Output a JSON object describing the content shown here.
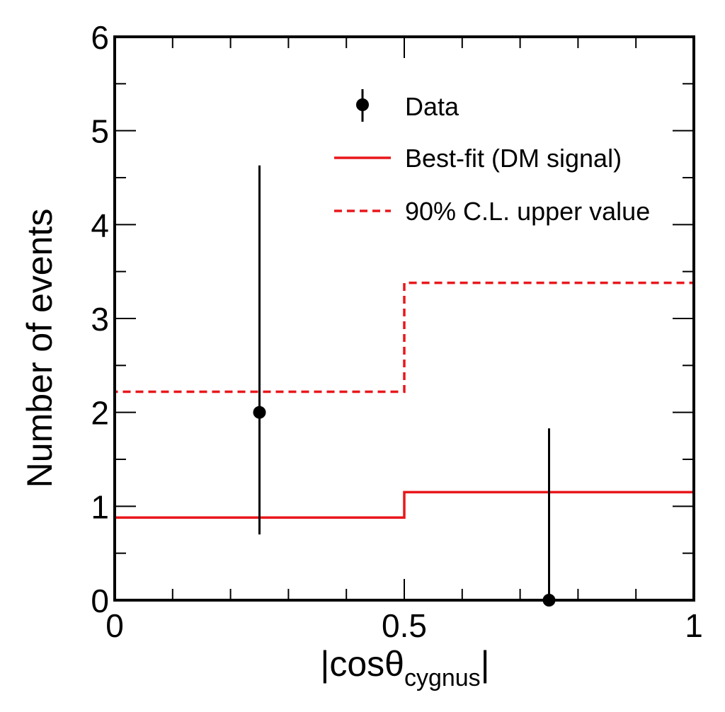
{
  "chart_data": {
    "type": "line",
    "x_range": [
      0,
      1
    ],
    "y_range": [
      0,
      6
    ],
    "x_ticks": [
      "0",
      "0.5",
      "1"
    ],
    "y_ticks": [
      "0",
      "1",
      "2",
      "3",
      "4",
      "5",
      "6"
    ],
    "x_label": {
      "pre": "|cosθ",
      "sub": "cygnus",
      "post": "|"
    },
    "y_label": "Number of events",
    "grid": false,
    "legend_position": "top-right",
    "data": {
      "name": "Data",
      "points": [
        {
          "x": 0.25,
          "y": 2,
          "err_low": 1.3,
          "err_high": 2.63
        },
        {
          "x": 0.75,
          "y": 0,
          "err_low": 0,
          "err_high": 1.83
        }
      ]
    },
    "histograms": [
      {
        "name": "Best-fit (DM signal)",
        "color": "#e8171c",
        "style": "solid",
        "bin_edges": [
          0,
          0.5,
          1
        ],
        "values": [
          0.88,
          1.15
        ]
      },
      {
        "name": "90% C.L. upper value",
        "color": "#e8171c",
        "style": "dashed",
        "bin_edges": [
          0,
          0.5,
          1
        ],
        "values": [
          2.22,
          3.38
        ]
      }
    ]
  }
}
